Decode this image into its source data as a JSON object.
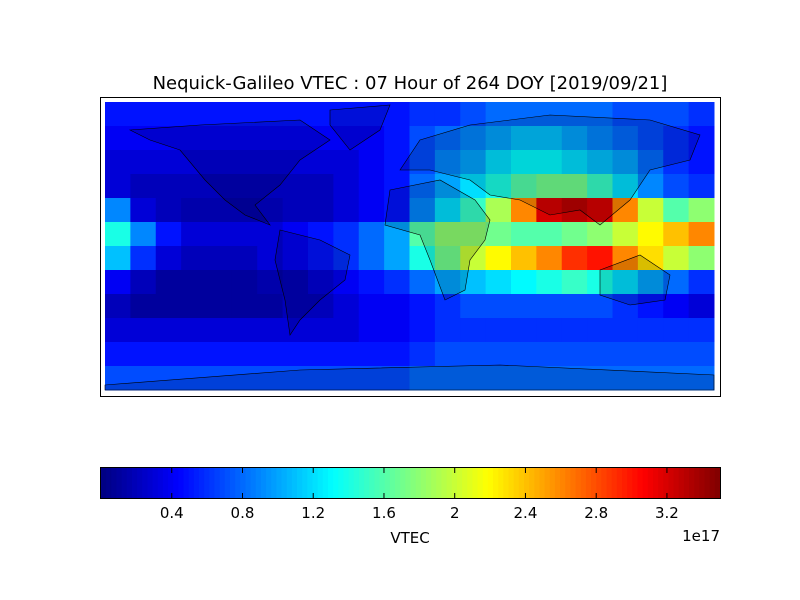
{
  "chart_data": {
    "type": "heatmap",
    "title": "Nequick-Galileo VTEC : 07 Hour of 264 DOY [2019/09/21]",
    "colormap": "jet",
    "z": [
      [
        0.5,
        0.5,
        0.5,
        0.5,
        0.5,
        0.5,
        0.5,
        0.5,
        0.5,
        0.5,
        0.5,
        0.5,
        0.6,
        0.6,
        0.7,
        0.8,
        0.8,
        0.8,
        0.8,
        0.8,
        0.7,
        0.7,
        0.7,
        0.6
      ],
      [
        0.4,
        0.4,
        0.4,
        0.4,
        0.4,
        0.4,
        0.4,
        0.4,
        0.4,
        0.4,
        0.4,
        0.5,
        0.7,
        0.8,
        0.9,
        1.0,
        1.1,
        1.1,
        1.0,
        0.9,
        0.8,
        0.7,
        0.6,
        0.5
      ],
      [
        0.3,
        0.3,
        0.3,
        0.3,
        0.3,
        0.3,
        0.3,
        0.3,
        0.3,
        0.3,
        0.4,
        0.5,
        0.7,
        0.9,
        1.0,
        1.2,
        1.3,
        1.3,
        1.2,
        1.1,
        1.0,
        0.8,
        0.6,
        0.5
      ],
      [
        0.3,
        0.2,
        0.2,
        0.2,
        0.2,
        0.2,
        0.2,
        0.2,
        0.2,
        0.3,
        0.4,
        0.5,
        0.8,
        1.0,
        1.2,
        1.4,
        1.6,
        1.7,
        1.7,
        1.5,
        1.2,
        0.9,
        0.7,
        0.6
      ],
      [
        0.9,
        0.3,
        0.2,
        0.15,
        0.15,
        0.15,
        0.15,
        0.2,
        0.2,
        0.3,
        0.4,
        0.5,
        0.9,
        1.2,
        1.5,
        1.9,
        2.6,
        3.2,
        3.3,
        3.2,
        2.6,
        2.0,
        1.6,
        1.8
      ],
      [
        1.4,
        0.9,
        0.5,
        0.3,
        0.3,
        0.3,
        0.3,
        0.4,
        0.5,
        0.6,
        0.8,
        1.0,
        1.6,
        1.8,
        1.8,
        1.7,
        1.6,
        1.6,
        1.7,
        1.8,
        2.0,
        2.2,
        2.4,
        2.6
      ],
      [
        1.1,
        0.6,
        0.3,
        0.2,
        0.2,
        0.2,
        0.3,
        0.4,
        0.5,
        0.6,
        0.8,
        1.0,
        1.4,
        1.7,
        2.0,
        2.2,
        2.4,
        2.6,
        2.9,
        3.0,
        2.6,
        2.3,
        2.0,
        1.8
      ],
      [
        0.4,
        0.2,
        0.1,
        0.1,
        0.1,
        0.1,
        0.15,
        0.2,
        0.3,
        0.4,
        0.5,
        0.6,
        0.8,
        1.0,
        1.1,
        1.2,
        1.3,
        1.4,
        1.5,
        1.4,
        1.2,
        1.0,
        0.8,
        0.6
      ],
      [
        0.2,
        0.1,
        0.1,
        0.1,
        0.1,
        0.1,
        0.1,
        0.2,
        0.2,
        0.3,
        0.4,
        0.4,
        0.5,
        0.6,
        0.7,
        0.7,
        0.7,
        0.7,
        0.7,
        0.7,
        0.6,
        0.5,
        0.4,
        0.3
      ],
      [
        0.3,
        0.3,
        0.3,
        0.3,
        0.3,
        0.3,
        0.3,
        0.3,
        0.3,
        0.3,
        0.4,
        0.4,
        0.5,
        0.6,
        0.6,
        0.6,
        0.6,
        0.6,
        0.6,
        0.6,
        0.6,
        0.6,
        0.6,
        0.6
      ],
      [
        0.5,
        0.5,
        0.5,
        0.5,
        0.5,
        0.5,
        0.5,
        0.5,
        0.5,
        0.5,
        0.5,
        0.5,
        0.6,
        0.7,
        0.7,
        0.7,
        0.7,
        0.7,
        0.7,
        0.7,
        0.7,
        0.7,
        0.7,
        0.7
      ],
      [
        0.7,
        0.7,
        0.7,
        0.7,
        0.7,
        0.7,
        0.7,
        0.7,
        0.7,
        0.7,
        0.7,
        0.7,
        0.8,
        0.8,
        0.8,
        0.8,
        0.8,
        0.8,
        0.8,
        0.8,
        0.8,
        0.8,
        0.8,
        0.8
      ]
    ],
    "colorbar_lim": [
      0.0,
      3.5
    ],
    "colorbar_ticks": [
      0.4,
      0.8,
      1.2,
      1.6,
      2.0,
      2.4,
      2.8,
      3.2
    ],
    "colorbar_label": "VTEC",
    "colorbar_offset": "1e17"
  }
}
